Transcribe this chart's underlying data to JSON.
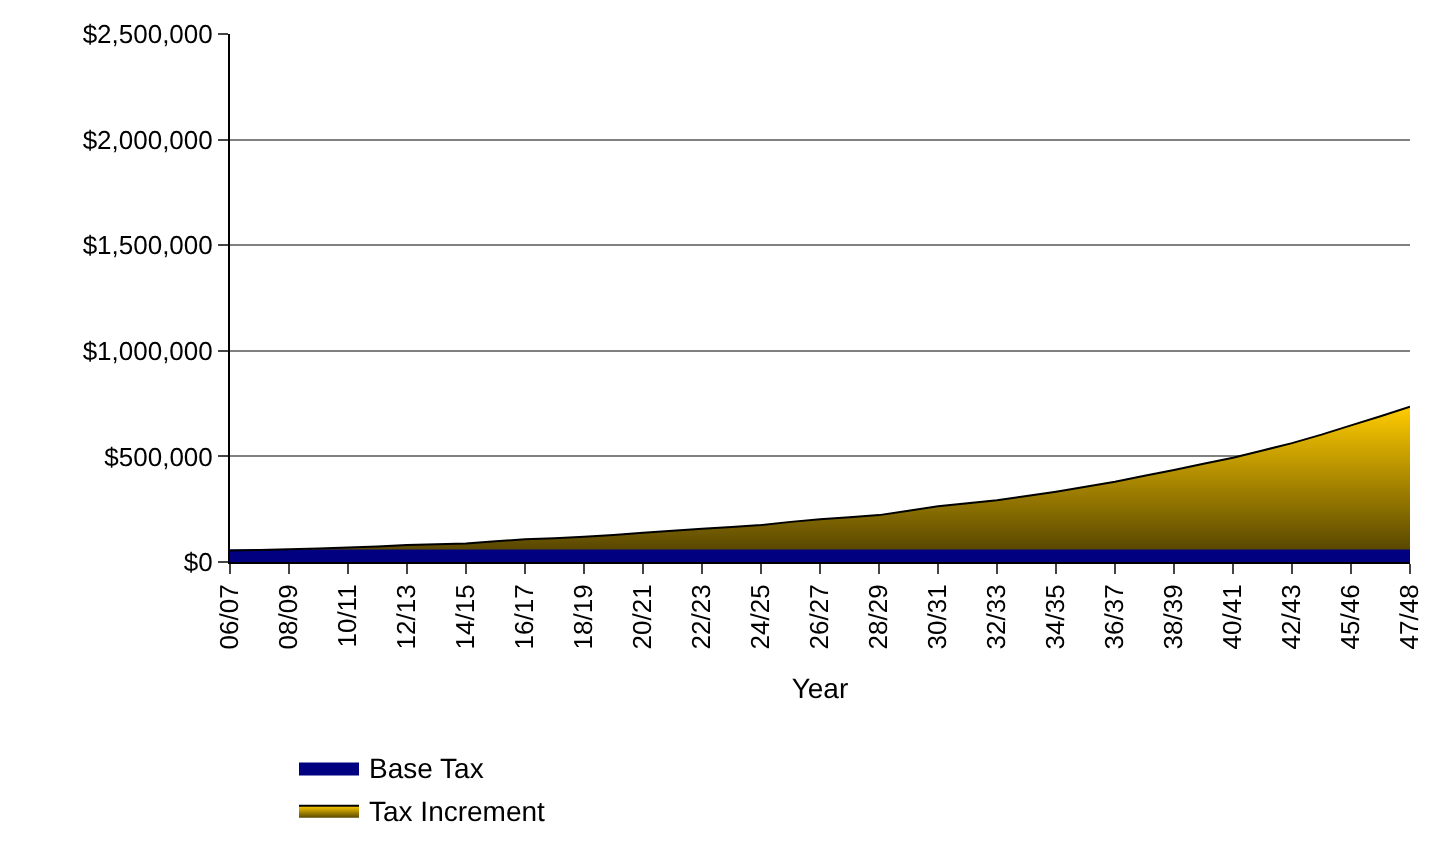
{
  "chart_data": {
    "type": "area",
    "stacked": true,
    "xlabel": "Year",
    "categories": [
      "06/07",
      null,
      "08/09",
      null,
      "10/11",
      null,
      "12/13",
      null,
      "14/15",
      null,
      "16/17",
      null,
      "18/19",
      null,
      "20/21",
      null,
      "22/23",
      null,
      "24/25",
      null,
      "26/27",
      null,
      "28/29",
      null,
      "30/31",
      null,
      "32/33",
      null,
      "34/35",
      null,
      "36/37",
      null,
      "38/39",
      null,
      "40/41",
      null,
      "42/43",
      null,
      "45/46",
      null,
      "47/48"
    ],
    "series": [
      {
        "name": "Base Tax",
        "color": "#000080",
        "values": [
          55000,
          55000,
          55000,
          55000,
          55000,
          55000,
          55000,
          55000,
          55000,
          55000,
          55000,
          55000,
          55000,
          55000,
          55000,
          55000,
          55000,
          55000,
          55000,
          55000,
          55000,
          55000,
          55000,
          55000,
          55000,
          55000,
          55000,
          55000,
          55000,
          55000,
          55000,
          55000,
          55000,
          55000,
          55000,
          55000,
          55000,
          55000,
          55000,
          55000,
          55000
        ]
      },
      {
        "name": "Tax Increment",
        "color": "#ffcc00",
        "values": [
          0,
          2000,
          5000,
          9000,
          14000,
          19000,
          25000,
          29000,
          33000,
          43000,
          53000,
          58000,
          64000,
          73000,
          83000,
          93000,
          103000,
          111000,
          120000,
          135000,
          147000,
          157000,
          167000,
          188000,
          209000,
          223000,
          237000,
          257000,
          278000,
          301000,
          325000,
          353000,
          381000,
          410000,
          439000,
          473000,
          508000,
          548000,
          592000,
          635000,
          680000
        ]
      }
    ],
    "ylim": [
      0,
      2500000
    ],
    "yticks": [
      {
        "value": 0,
        "label": "$0"
      },
      {
        "value": 500000,
        "label": "$500,000"
      },
      {
        "value": 1000000,
        "label": "$1,000,000"
      },
      {
        "value": 1500000,
        "label": "$1,500,000"
      },
      {
        "value": 2000000,
        "label": "$2,000,000"
      },
      {
        "value": 2500000,
        "label": "$2,500,000"
      }
    ],
    "grid": "y",
    "legend": "bottom"
  }
}
